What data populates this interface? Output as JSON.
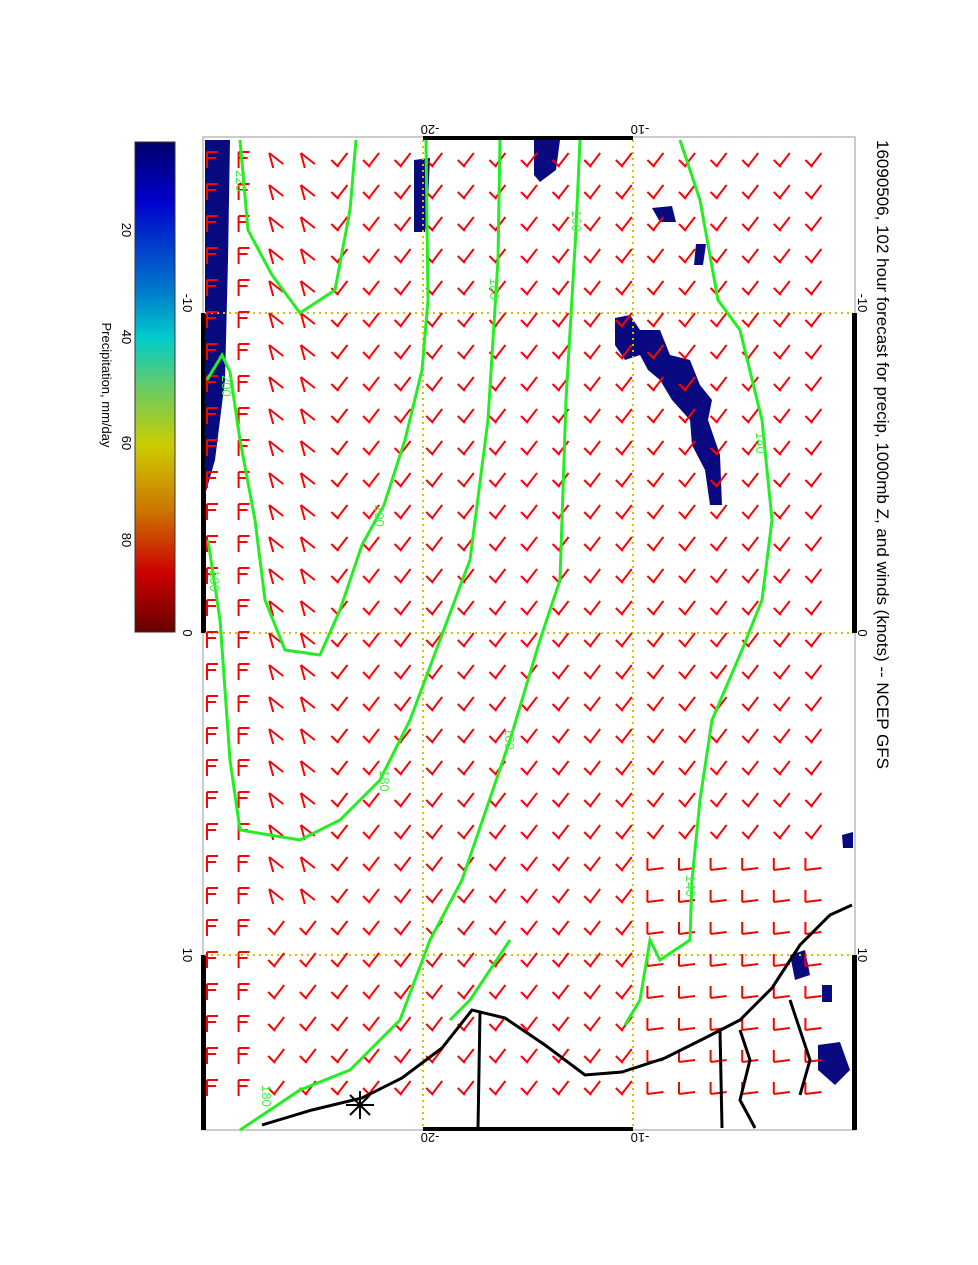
{
  "title": "16090506, 102 hour forecast for precip, 1000mb Z, and winds (knots) -- NCEP GFS",
  "colorbar": {
    "label": "Precipitation, mm/day",
    "ticks": [
      "20",
      "40",
      "60",
      "80"
    ],
    "range": [
      0,
      100
    ],
    "colors": [
      "#00006a",
      "#0000cc",
      "#0077cc",
      "#00cccc",
      "#66cc66",
      "#cccc00",
      "#cc7700",
      "#cc0000",
      "#660000"
    ]
  },
  "axes": {
    "lat_top": [
      "-20",
      "-10"
    ],
    "lat_bottom": [
      "-20",
      "-10"
    ],
    "lon_right": [
      "-10",
      "0",
      "10"
    ],
    "lon_left": [
      "-10",
      "0",
      "10"
    ]
  },
  "contour_labels": [
    "220",
    "200",
    "180",
    "180",
    "160",
    "140",
    "200",
    "180",
    "160",
    "140",
    "180"
  ],
  "colors": {
    "barb": "#ff0000",
    "contour": "#22ee22",
    "precip": "#0a0a80",
    "grid": "#d4c400",
    "coast": "#000000"
  }
}
